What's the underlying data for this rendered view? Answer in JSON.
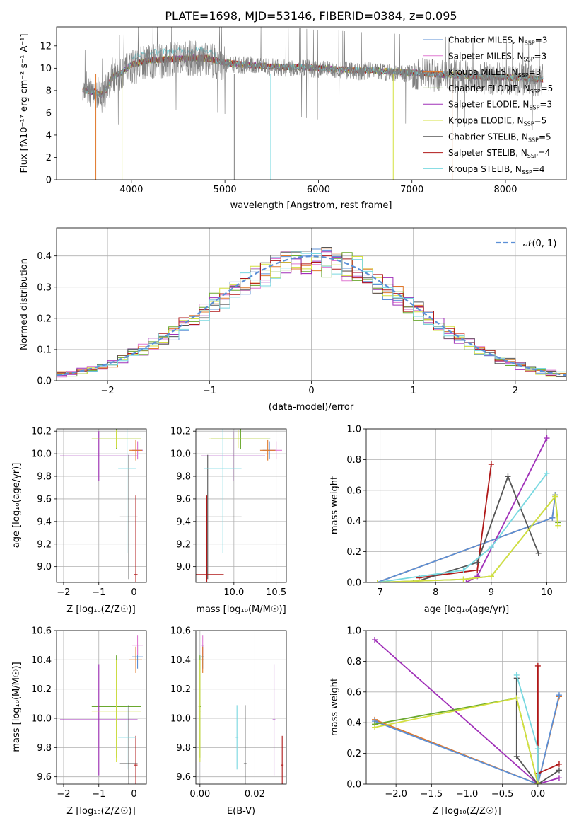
{
  "figure": {
    "title": "PLATE=1698, MJD=53146, FIBERID=0384, z=0.095"
  },
  "labels": {
    "wavelength_x": "wavelength [Angstrom, rest frame]",
    "flux_y": "Flux [fλ10⁻¹⁷ erg cm⁻² s⁻¹ A⁻¹]",
    "resid_x": "(data-model)/error",
    "resid_y": "Normed distribution",
    "normal_legend": "𝒩(0, 1)",
    "age_y": "age  [log₁₀(age/yr)]",
    "mass_y": "mass [log₁₀(M/M☉)]",
    "Z_x": "Z [log₁₀(Z/Z☉)]",
    "mass_x": "mass [log₁₀(M/M☉)]",
    "age_x": "age  [log₁₀(age/yr)]",
    "ebv_x": "E(B-V)",
    "mass_weight_y": "mass weight"
  },
  "models": [
    {
      "name": "Chabrier MILES, N_SSP=3",
      "color": "#5b8fd6",
      "age": 10.03,
      "age_err": 0.08,
      "Z": 0.1,
      "Z_err": 0.15,
      "mass": 10.42,
      "mass_err": 0.08,
      "ebv": 0.001,
      "ebv_err": 0.0005
    },
    {
      "name": "Salpeter MILES, N_SSP=3",
      "color": "#e07ad2",
      "age": 10.03,
      "age_err": 0.08,
      "Z": 0.1,
      "Z_err": 0.15,
      "mass": 10.5,
      "mass_err": 0.07,
      "ebv": 0.001,
      "ebv_err": 0.0005
    },
    {
      "name": "Kroupa MILES, N_SSP=3",
      "color": "#e0782a",
      "age": 10.03,
      "age_err": 0.09,
      "Z": 0.05,
      "Z_err": 0.18,
      "mass": 10.4,
      "mass_err": 0.09,
      "ebv": 0.001,
      "ebv_err": 0.0005
    },
    {
      "name": "Chabrier ELODIE, N_SSP=5",
      "color": "#6aa82e",
      "age": 10.13,
      "age_err": 0.09,
      "Z": -0.5,
      "Z_err": 0.7,
      "mass": 10.08,
      "mass_err": 0.35,
      "ebv": 0.0,
      "ebv_err": 0.0005
    },
    {
      "name": "Salpeter ELODIE, N_SSP=3",
      "color": "#a030b8",
      "age": 9.98,
      "age_err": 0.22,
      "Z": -1.0,
      "Z_err": 1.1,
      "mass": 9.99,
      "mass_err": 0.38,
      "ebv": 0.027,
      "ebv_err": 0.0005
    },
    {
      "name": "Kroupa ELODIE, N_SSP=5",
      "color": "#d4e040",
      "age": 10.13,
      "age_err": 0.08,
      "Z": -0.5,
      "Z_err": 0.7,
      "mass": 10.05,
      "mass_err": 0.35,
      "ebv": 0.0,
      "ebv_err": 0.0005
    },
    {
      "name": "Chabrier STELIB, N_SSP=5",
      "color": "#555555",
      "age": 9.44,
      "age_err": 0.55,
      "Z": -0.15,
      "Z_err": 0.25,
      "mass": 9.69,
      "mass_err": 0.4,
      "ebv": 0.0165,
      "ebv_err": 0.0005
    },
    {
      "name": "Salpeter STELIB, N_SSP=4",
      "color": "#b01818",
      "age": 8.93,
      "age_err": 0.7,
      "Z": 0.05,
      "Z_err": 0.05,
      "mass": 9.68,
      "mass_err": 0.2,
      "ebv": 0.03,
      "ebv_err": 0.0005
    },
    {
      "name": "Kroupa STELIB, N_SSP=4",
      "color": "#78d8e0",
      "age": 9.87,
      "age_err": 0.75,
      "Z": -0.2,
      "Z_err": 0.25,
      "mass": 9.87,
      "mass_err": 0.22,
      "ebv": 0.0135,
      "ebv_err": 0.0005
    }
  ],
  "chart_data": [
    {
      "panel": "spectrum",
      "type": "line",
      "title": "PLATE=1698, MJD=53146, FIBERID=0384, z=0.095",
      "xlabel": "wavelength [Angstrom, rest frame]",
      "ylabel": "Flux [fλ10⁻¹⁷ erg cm⁻² s⁻¹ A⁻¹]",
      "xlim": [
        3200,
        8650
      ],
      "ylim": [
        0,
        13.7
      ],
      "xticks": [
        4000,
        5000,
        6000,
        7000,
        8000
      ],
      "yticks": [
        0,
        2,
        4,
        6,
        8,
        10,
        12
      ],
      "data_series": {
        "name": "data",
        "color": "#808080",
        "x": [
          3480,
          3600,
          3700,
          3800,
          3900,
          4000,
          4100,
          4200,
          4400,
          4600,
          4800,
          5000,
          5200,
          5400,
          5600,
          5800,
          6000,
          6200,
          6400,
          6600,
          6800,
          7000,
          7200,
          7400,
          7600,
          7800,
          8000,
          8200,
          8400
        ],
        "y": [
          8.2,
          8.0,
          7.3,
          9.4,
          9.5,
          10.0,
          10.4,
          10.6,
          10.7,
          10.9,
          10.8,
          10.4,
          10.3,
          10.2,
          10.0,
          10.1,
          9.9,
          9.9,
          9.7,
          9.8,
          9.6,
          9.5,
          9.4,
          9.3,
          9.2,
          9.1,
          9.1,
          9.0,
          8.9
        ]
      },
      "model_curve": {
        "x": [
          3480,
          3600,
          3700,
          3800,
          3900,
          4000,
          4100,
          4200,
          4400,
          4600,
          4800,
          5000,
          5200,
          5400,
          5600,
          5800,
          6000,
          6200,
          6400,
          6600,
          6800,
          7000,
          7200,
          7400,
          7600,
          7800,
          8000,
          8200,
          8400
        ],
        "y": [
          8.0,
          7.9,
          7.6,
          9.3,
          9.6,
          10.3,
          10.5,
          10.7,
          10.8,
          10.9,
          10.9,
          10.5,
          10.3,
          10.2,
          10.1,
          10.1,
          10.0,
          9.9,
          9.8,
          9.8,
          9.7,
          9.6,
          9.5,
          9.4,
          9.3,
          9.2,
          9.2,
          9.1,
          9.0
        ]
      }
    },
    {
      "panel": "residuals",
      "type": "line",
      "xlabel": "(data-model)/error",
      "ylabel": "Normed distribution",
      "xlim": [
        -2.5,
        2.5
      ],
      "ylim": [
        0,
        0.49
      ],
      "xticks": [
        -2,
        -1,
        0,
        1,
        2
      ],
      "yticks": [
        0.0,
        0.1,
        0.2,
        0.3,
        0.4
      ],
      "bin_width": 0.1,
      "normal": {
        "name": "𝒩(0, 1)",
        "mean": 0,
        "sigma": 1,
        "color": "#5b8fd6"
      }
    },
    {
      "panel": "Z_vs_age",
      "type": "scatter",
      "xlabel": "Z [log₁₀(Z/Z☉)]",
      "ylabel": "age  [log₁₀(age/yr)]",
      "xlim": [
        -2.2,
        0.35
      ],
      "ylim": [
        8.86,
        10.22
      ],
      "xticks": [
        -2,
        -1,
        0
      ],
      "yticks": [
        9.0,
        9.2,
        9.4,
        9.6,
        9.8,
        10.0,
        10.2
      ],
      "x_field": "Z",
      "y_field": "age"
    },
    {
      "panel": "mass_vs_age",
      "type": "scatter",
      "xlabel": "mass [log₁₀(M/M☉)]",
      "ylabel": "",
      "xlim": [
        9.55,
        10.62
      ],
      "ylim": [
        8.86,
        10.22
      ],
      "xticks": [
        10.0,
        10.5
      ],
      "yticks": [
        9.0,
        9.2,
        9.4,
        9.6,
        9.8,
        10.0,
        10.2
      ],
      "x_field": "mass",
      "y_field": "age"
    },
    {
      "panel": "age_vs_weight",
      "type": "line",
      "xlabel": "age  [log₁₀(age/yr)]",
      "ylabel": "mass weight",
      "xlim": [
        6.75,
        10.35
      ],
      "ylim": [
        0,
        1.0
      ],
      "xticks": [
        7,
        8,
        9,
        10
      ],
      "yticks": [
        0.0,
        0.2,
        0.4,
        0.6,
        0.8,
        1.0
      ],
      "series": [
        {
          "color": "#e0782a",
          "x": [
            6.95,
            10.1,
            10.15
          ],
          "y": [
            0.0,
            0.42,
            0.57
          ]
        },
        {
          "color": "#5b8fd6",
          "x": [
            6.95,
            10.1,
            10.15
          ],
          "y": [
            0.0,
            0.42,
            0.57
          ]
        },
        {
          "color": "#a030b8",
          "x": [
            8.55,
            8.75,
            10.0
          ],
          "y": [
            0.0,
            0.04,
            0.94
          ]
        },
        {
          "color": "#b01818",
          "x": [
            7.7,
            8.75,
            9.0,
            9.0
          ],
          "y": [
            0.03,
            0.08,
            0.77,
            0.77
          ]
        },
        {
          "color": "#555555",
          "x": [
            7.6,
            8.75,
            9.3,
            9.85
          ],
          "y": [
            0.0,
            0.13,
            0.69,
            0.19
          ]
        },
        {
          "color": "#78d8e0",
          "x": [
            6.95,
            8.5,
            9.0,
            10.0
          ],
          "y": [
            0.0,
            0.08,
            0.23,
            0.71
          ]
        },
        {
          "color": "#6aa82e",
          "x": [
            6.95,
            8.5,
            9.0,
            10.15,
            10.2
          ],
          "y": [
            0.0,
            0.02,
            0.04,
            0.56,
            0.39
          ]
        },
        {
          "color": "#d4e040",
          "x": [
            6.95,
            8.5,
            9.0,
            10.15,
            10.2
          ],
          "y": [
            0.0,
            0.02,
            0.04,
            0.56,
            0.37
          ]
        }
      ]
    },
    {
      "panel": "Z_vs_mass",
      "type": "scatter",
      "xlabel": "Z [log₁₀(Z/Z☉)]",
      "ylabel": "mass [log₁₀(M/M☉)]",
      "xlim": [
        -2.2,
        0.35
      ],
      "ylim": [
        9.55,
        10.6
      ],
      "xticks": [
        -2,
        -1,
        0
      ],
      "yticks": [
        9.6,
        9.8,
        10.0,
        10.2,
        10.4,
        10.6
      ],
      "x_field": "Z",
      "y_field": "mass"
    },
    {
      "panel": "ebv_vs_mass",
      "type": "scatter",
      "xlabel": "E(B-V)",
      "ylabel": "",
      "xlim": [
        -0.0015,
        0.0315
      ],
      "ylim": [
        9.55,
        10.6
      ],
      "xticks": [
        0.0,
        0.02
      ],
      "yticks": [
        9.6,
        9.8,
        10.0,
        10.2,
        10.4,
        10.6
      ],
      "x_field": "ebv",
      "y_field": "mass"
    },
    {
      "panel": "Z_vs_weight",
      "type": "line",
      "xlabel": "Z [log₁₀(Z/Z☉)]",
      "ylabel": "mass weight",
      "xlim": [
        -2.42,
        0.4
      ],
      "ylim": [
        0,
        1.0
      ],
      "xticks": [
        -2.0,
        -1.5,
        -1.0,
        -0.5,
        0.0
      ],
      "yticks": [
        0.0,
        0.2,
        0.4,
        0.6,
        0.8,
        1.0
      ],
      "series": [
        {
          "color": "#e0782a",
          "x": [
            -2.3,
            0.0,
            0.3,
            0.3
          ],
          "y": [
            0.42,
            0.0,
            0.57,
            0.57
          ]
        },
        {
          "color": "#5b8fd6",
          "x": [
            -2.3,
            0.0,
            0.3
          ],
          "y": [
            0.41,
            0.0,
            0.58
          ]
        },
        {
          "color": "#a030b8",
          "x": [
            -2.3,
            0.0,
            0.3
          ],
          "y": [
            0.94,
            0.0,
            0.04
          ]
        },
        {
          "color": "#b01818",
          "x": [
            0.0,
            0.0,
            0.0,
            0.3
          ],
          "y": [
            0.0,
            0.77,
            0.07,
            0.13
          ]
        },
        {
          "color": "#555555",
          "x": [
            -0.3,
            -0.3,
            0.0,
            0.3
          ],
          "y": [
            0.69,
            0.18,
            0.0,
            0.09
          ]
        },
        {
          "color": "#78d8e0",
          "x": [
            -0.3,
            0.0,
            0.0
          ],
          "y": [
            0.71,
            0.23,
            0.0
          ]
        },
        {
          "color": "#6aa82e",
          "x": [
            -2.3,
            -0.3,
            0.0
          ],
          "y": [
            0.39,
            0.56,
            0.0
          ]
        },
        {
          "color": "#d4e040",
          "x": [
            -2.3,
            -0.3,
            0.0
          ],
          "y": [
            0.37,
            0.56,
            0.0
          ]
        }
      ]
    }
  ]
}
